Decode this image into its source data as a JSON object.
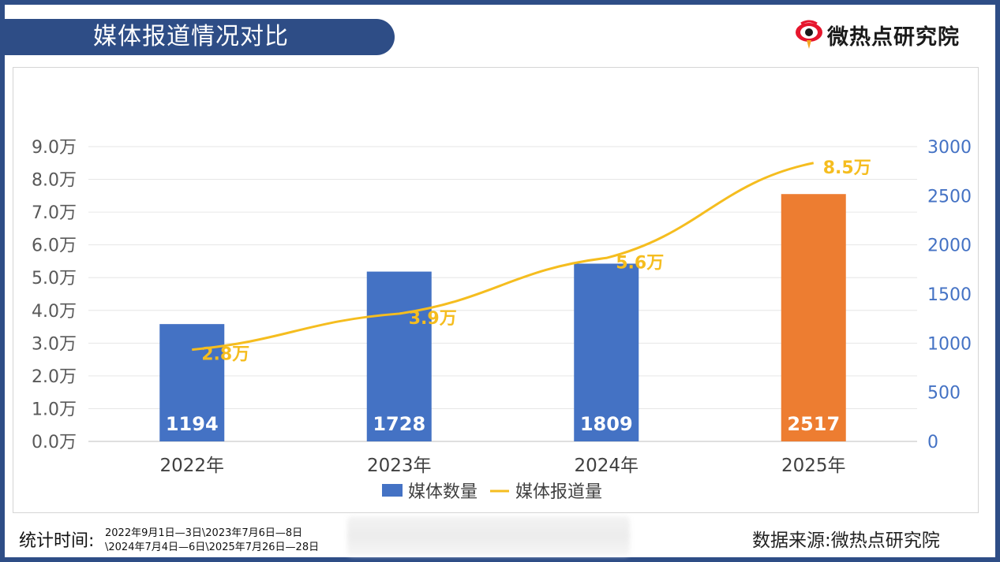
{
  "header": {
    "title": "媒体报道情况对比",
    "brand_name": "微热点研究院"
  },
  "colors": {
    "frame": "#2e4d86",
    "bar_default": "#4472c4",
    "bar_highlight": "#ed7d31",
    "line": "#f5bd1f",
    "right_axis": "#4472c4"
  },
  "chart_data": {
    "type": "bar",
    "categories": [
      "2022年",
      "2023年",
      "2024年",
      "2025年"
    ],
    "series": [
      {
        "name": "媒体数量",
        "type": "bar",
        "axis": "right",
        "values": [
          1194,
          1728,
          1809,
          2517
        ],
        "labels": [
          "1194",
          "1728",
          "1809",
          "2517"
        ]
      },
      {
        "name": "媒体报道量",
        "type": "line",
        "axis": "left",
        "values": [
          2.8,
          3.9,
          5.6,
          8.5
        ],
        "labels": [
          "2.8万",
          "3.9万",
          "5.6万",
          "8.5万"
        ]
      }
    ],
    "left_axis": {
      "ylim": [
        0,
        9
      ],
      "ticks": [
        "0.0万",
        "1.0万",
        "2.0万",
        "3.0万",
        "4.0万",
        "5.0万",
        "6.0万",
        "7.0万",
        "8.0万",
        "9.0万"
      ]
    },
    "right_axis": {
      "ylim": [
        0,
        3000
      ],
      "ticks": [
        "0",
        "500",
        "1000",
        "1500",
        "2000",
        "2500",
        "3000"
      ]
    },
    "grid": true,
    "legend": "bottom"
  },
  "footer": {
    "period_label": "统计时间:",
    "period_line1": "2022年9月1日—3日\\2023年7月6日—8日",
    "period_line2": "\\2024年7月4日—6日\\2025年7月26日—28日",
    "source": "数据来源:微热点研究院"
  }
}
